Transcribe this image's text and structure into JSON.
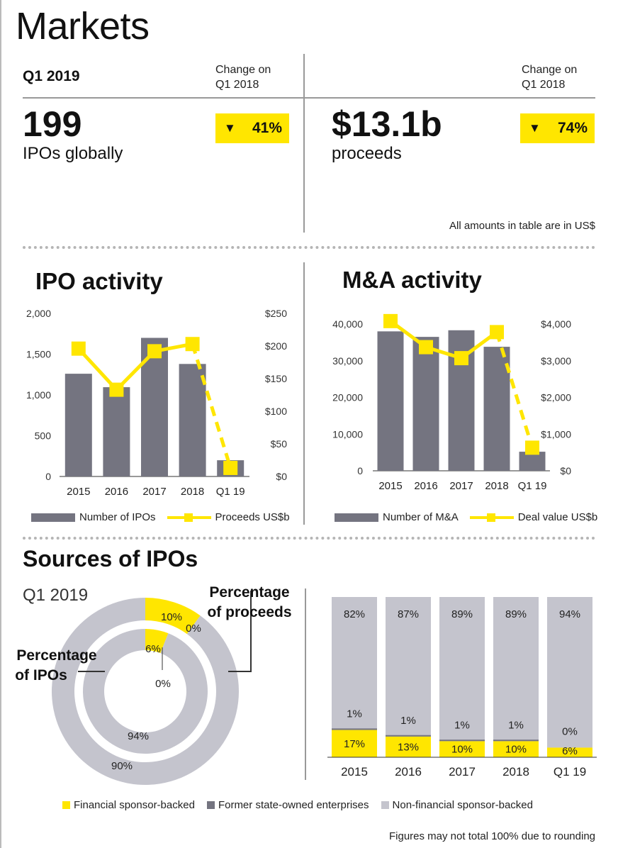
{
  "header": {
    "title": "Markets",
    "period": "Q1 2019",
    "change_label_line1": "Change on",
    "change_label_line2": "Q1 2018",
    "note": "All amounts in table are in US$"
  },
  "kpis": [
    {
      "value": "199",
      "label": "IPOs globally",
      "change": "41%",
      "direction": "down"
    },
    {
      "value": "$13.1b",
      "label": "proceeds",
      "change": "74%",
      "direction": "down"
    }
  ],
  "colors": {
    "yellow": "#ffe600",
    "dark_gray": "#747480",
    "light_gray": "#c4c4cd"
  },
  "sources": {
    "title": "Sources of IPOs",
    "period": "Q1 2019",
    "proceeds_label_line1": "Percentage",
    "proceeds_label_line2": "of proceeds",
    "ipos_label_line1": "Percentage",
    "ipos_label_line2": "of IPOs",
    "footnote": "Figures may not total 100% due to rounding"
  },
  "chart_data": [
    {
      "type": "bar",
      "title": "IPO activity",
      "categories": [
        "2015",
        "2016",
        "2017",
        "2018",
        "Q1 19"
      ],
      "series": [
        {
          "name": "Number of IPOs",
          "kind": "bar",
          "axis": "left",
          "values": [
            1260,
            1095,
            1700,
            1380,
            199
          ],
          "color": "#747480"
        },
        {
          "name": "Proceeds US$b",
          "kind": "line",
          "axis": "right",
          "values": [
            196,
            133,
            192,
            203,
            13.1
          ],
          "color": "#ffe600",
          "dashed_last_segment": true
        }
      ],
      "y_left": {
        "ticks": [
          "0",
          "500",
          "1,000",
          "1,500",
          "2,000"
        ],
        "ylim": [
          0,
          2000
        ]
      },
      "y_right": {
        "ticks": [
          "$0",
          "$50",
          "$100",
          "$150",
          "$200",
          "$250"
        ],
        "ylim": [
          0,
          250
        ]
      }
    },
    {
      "type": "bar",
      "title": "M&A activity",
      "categories": [
        "2015",
        "2016",
        "2017",
        "2018",
        "Q1 19"
      ],
      "series": [
        {
          "name": "Number of M&A",
          "kind": "bar",
          "axis": "left",
          "values": [
            38000,
            36500,
            38300,
            33800,
            5200
          ],
          "color": "#747480"
        },
        {
          "name": "Deal value US$b",
          "kind": "line",
          "axis": "right",
          "values": [
            4080,
            3370,
            3070,
            3780,
            630
          ],
          "color": "#ffe600",
          "dashed_last_segment": true
        }
      ],
      "y_left": {
        "ticks": [
          "0",
          "10,000",
          "20,000",
          "30,000",
          "40,000"
        ],
        "ylim": [
          0,
          40000
        ]
      },
      "y_right": {
        "ticks": [
          "$0",
          "$1,000",
          "$2,000",
          "$3,000",
          "$4,000"
        ],
        "ylim": [
          0,
          4000
        ]
      }
    },
    {
      "type": "pie",
      "variant": "nested-donut",
      "rings": [
        {
          "name": "Percentage of proceeds",
          "ring": "outer",
          "slices": [
            {
              "name": "Financial sponsor-backed",
              "value": 10,
              "label": "10%"
            },
            {
              "name": "Former state-owned enterprises",
              "value": 0,
              "label": "0%"
            },
            {
              "name": "Non-financial sponsor-backed",
              "value": 90,
              "label": "90%"
            }
          ]
        },
        {
          "name": "Percentage of IPOs",
          "ring": "inner",
          "slices": [
            {
              "name": "Financial sponsor-backed",
              "value": 6,
              "label": "6%"
            },
            {
              "name": "Former state-owned enterprises",
              "value": 0,
              "label": "0%"
            },
            {
              "name": "Non-financial sponsor-backed",
              "value": 94,
              "label": "94%"
            }
          ]
        }
      ]
    },
    {
      "type": "bar",
      "variant": "stacked-100",
      "categories": [
        "2015",
        "2016",
        "2017",
        "2018",
        "Q1 19"
      ],
      "series": [
        {
          "name": "Financial sponsor-backed",
          "values": [
            17,
            13,
            10,
            10,
            6
          ],
          "labels": [
            "17%",
            "13%",
            "10%",
            "10%",
            "6%"
          ],
          "color": "#ffe600"
        },
        {
          "name": "Former state-owned enterprises",
          "values": [
            1,
            1,
            1,
            1,
            0
          ],
          "labels": [
            "1%",
            "1%",
            "1%",
            "1%",
            "0%"
          ],
          "color": "#747480"
        },
        {
          "name": "Non-financial sponsor-backed",
          "values": [
            82,
            87,
            89,
            89,
            94
          ],
          "labels": [
            "82%",
            "87%",
            "89%",
            "89%",
            "94%"
          ],
          "color": "#c4c4cd"
        }
      ],
      "legend": [
        "Financial sponsor-backed",
        "Former state-owned enterprises",
        "Non-financial sponsor-backed"
      ]
    }
  ]
}
